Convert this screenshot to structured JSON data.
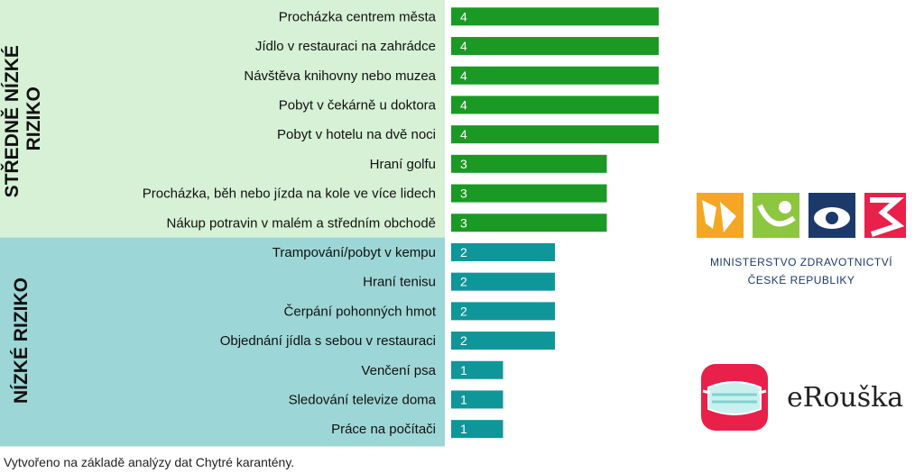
{
  "colors": {
    "medium_band": "#d6f1d5",
    "low_band": "#9dd6d6",
    "medium_bar": "#1a9a25",
    "low_bar": "#0f9699",
    "bar_label": "#ffffff",
    "text": "#111111",
    "ministry_navy": "#1b3a6b",
    "erouska_red": "#e8204a"
  },
  "bands": [
    {
      "label": "STŘEDNĚ NÍZKÉ RIZIKO",
      "line1": "STŘEDNĚ NÍZKÉ",
      "line2": "RIZIKO"
    },
    {
      "label": "NÍZKÉ RIZIKO"
    }
  ],
  "chart_data": {
    "type": "bar",
    "orientation": "horizontal",
    "categories": [
      "Procházka centrem města",
      "Jídlo v restauraci na zahrádce",
      "Návštěva knihovny nebo muzea",
      "Pobyt v čekárně u doktora",
      "Pobyt v hotelu na dvě noci",
      "Hraní golfu",
      "Procházka, běh nebo jízda na kole ve více lidech",
      "Nákup potravin v malém a středním obchodě",
      "Trampování/pobyt v kempu",
      "Hraní tenisu",
      "Čerpání pohonných hmot",
      "Objednání jídla s sebou v restauraci",
      "Venčení psa",
      "Sledování televize doma",
      "Práce na počítači"
    ],
    "values": [
      4,
      4,
      4,
      4,
      4,
      3,
      3,
      3,
      2,
      2,
      2,
      2,
      1,
      1,
      1
    ],
    "groups": [
      "medium",
      "medium",
      "medium",
      "medium",
      "medium",
      "medium",
      "medium",
      "medium",
      "low",
      "low",
      "low",
      "low",
      "low",
      "low",
      "low"
    ],
    "data_labels": true
  },
  "footnote": "Vytvořeno na základě analýzy dat Chytré karantény.",
  "logos": {
    "ministry_line1": "MINISTERSTVO ZDRAVOTNICTVÍ",
    "ministry_line2": "ČESKÉ REPUBLIKY",
    "app_name": "eRouška"
  }
}
